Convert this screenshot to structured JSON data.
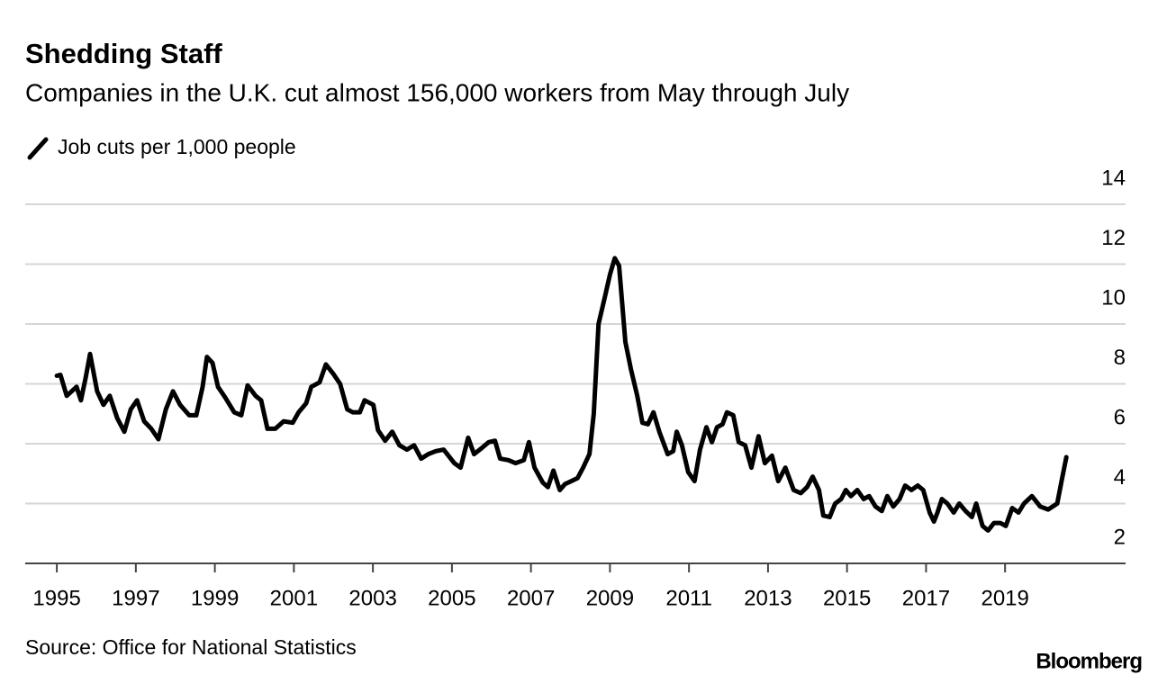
{
  "chart_data": {
    "type": "line",
    "title": "Shedding Staff",
    "subtitle": "Companies in the U.K. cut almost 156,000 workers from May through July",
    "source": "Source: Office for National Statistics",
    "brand": "Bloomberg",
    "x": [
      1995.0,
      1995.09,
      1995.25,
      1995.5,
      1995.61,
      1995.73,
      1995.84,
      1996.02,
      1996.18,
      1996.34,
      1996.53,
      1996.71,
      1996.87,
      1997.03,
      1997.21,
      1997.39,
      1997.57,
      1997.76,
      1997.94,
      1998.12,
      1998.35,
      1998.53,
      1998.69,
      1998.8,
      1998.94,
      1999.08,
      1999.26,
      1999.49,
      1999.67,
      1999.83,
      2000.03,
      2000.17,
      2000.33,
      2000.53,
      2000.74,
      2000.97,
      2001.12,
      2001.31,
      2001.44,
      2001.65,
      2001.81,
      2001.99,
      2002.17,
      2002.35,
      2002.49,
      2002.67,
      2002.79,
      2003.01,
      2003.13,
      2003.31,
      2003.49,
      2003.67,
      2003.86,
      2004.04,
      2004.22,
      2004.4,
      2004.59,
      2004.79,
      2005.06,
      2005.22,
      2005.41,
      2005.56,
      2005.75,
      2005.93,
      2006.09,
      2006.22,
      2006.43,
      2006.61,
      2006.82,
      2006.95,
      2007.09,
      2007.3,
      2007.43,
      2007.57,
      2007.73,
      2007.86,
      2008.02,
      2008.18,
      2008.32,
      2008.48,
      2008.59,
      2008.71,
      2008.87,
      2009.0,
      2009.12,
      2009.23,
      2009.39,
      2009.53,
      2009.69,
      2009.82,
      2009.96,
      2010.1,
      2010.25,
      2010.46,
      2010.6,
      2010.69,
      2010.82,
      2010.98,
      2011.14,
      2011.28,
      2011.44,
      2011.58,
      2011.71,
      2011.85,
      2011.96,
      2012.12,
      2012.26,
      2012.42,
      2012.58,
      2012.76,
      2012.92,
      2013.1,
      2013.26,
      2013.44,
      2013.65,
      2013.83,
      2013.99,
      2014.13,
      2014.29,
      2014.4,
      2014.56,
      2014.7,
      2014.85,
      2014.97,
      2015.1,
      2015.26,
      2015.42,
      2015.56,
      2015.72,
      2015.88,
      2016.02,
      2016.17,
      2016.33,
      2016.47,
      2016.63,
      2016.79,
      2016.93,
      2017.09,
      2017.2,
      2017.29,
      2017.4,
      2017.54,
      2017.7,
      2017.84,
      2018.0,
      2018.16,
      2018.27,
      2018.43,
      2018.57,
      2018.72,
      2018.88,
      2019.02,
      2019.18,
      2019.34,
      2019.48,
      2019.68,
      2019.89,
      2020.09,
      2020.32,
      2020.43,
      2020.55
    ],
    "series": [
      {
        "name": "Job cuts per 1,000 people",
        "color": "#000000",
        "values": [
          8.27,
          8.3,
          7.6,
          7.9,
          7.45,
          8.2,
          9.0,
          7.75,
          7.3,
          7.6,
          6.85,
          6.4,
          7.15,
          7.45,
          6.75,
          6.5,
          6.15,
          7.15,
          7.75,
          7.3,
          6.95,
          6.95,
          7.9,
          8.9,
          8.7,
          7.9,
          7.55,
          7.05,
          6.95,
          7.95,
          7.6,
          7.45,
          6.5,
          6.5,
          6.75,
          6.7,
          7.05,
          7.35,
          7.9,
          8.05,
          8.65,
          8.35,
          8.0,
          7.15,
          7.05,
          7.05,
          7.45,
          7.3,
          6.45,
          6.1,
          6.4,
          5.95,
          5.8,
          5.95,
          5.5,
          5.65,
          5.75,
          5.8,
          5.35,
          5.2,
          6.2,
          5.65,
          5.85,
          6.05,
          6.1,
          5.5,
          5.45,
          5.35,
          5.45,
          6.05,
          5.2,
          4.7,
          4.55,
          5.1,
          4.45,
          4.65,
          4.75,
          4.85,
          5.2,
          5.65,
          7.0,
          10.0,
          10.9,
          11.65,
          12.2,
          11.95,
          9.4,
          8.5,
          7.6,
          6.7,
          6.65,
          7.05,
          6.4,
          5.65,
          5.75,
          6.4,
          5.95,
          5.05,
          4.75,
          5.8,
          6.55,
          6.05,
          6.55,
          6.65,
          7.05,
          6.95,
          6.05,
          5.95,
          5.2,
          6.25,
          5.35,
          5.6,
          4.75,
          5.2,
          4.45,
          4.35,
          4.55,
          4.9,
          4.45,
          3.6,
          3.55,
          4.0,
          4.15,
          4.45,
          4.25,
          4.45,
          4.15,
          4.25,
          3.9,
          3.75,
          4.25,
          3.9,
          4.15,
          4.6,
          4.45,
          4.6,
          4.45,
          3.7,
          3.4,
          3.7,
          4.15,
          4.0,
          3.7,
          4.0,
          3.75,
          3.55,
          4.0,
          3.25,
          3.1,
          3.35,
          3.35,
          3.25,
          3.85,
          3.7,
          4.0,
          4.25,
          3.9,
          3.8,
          4.0,
          4.75,
          5.55
        ]
      }
    ],
    "xlim": [
      1994.2,
      2022.05
    ],
    "xticks": [
      1995,
      1997,
      1999,
      2001,
      2003,
      2005,
      2007,
      2009,
      2011,
      2013,
      2015,
      2017,
      2019
    ],
    "ylim": [
      2,
      14
    ],
    "yticks": [
      2,
      4,
      6,
      8,
      10,
      12,
      14
    ],
    "grid": true
  }
}
